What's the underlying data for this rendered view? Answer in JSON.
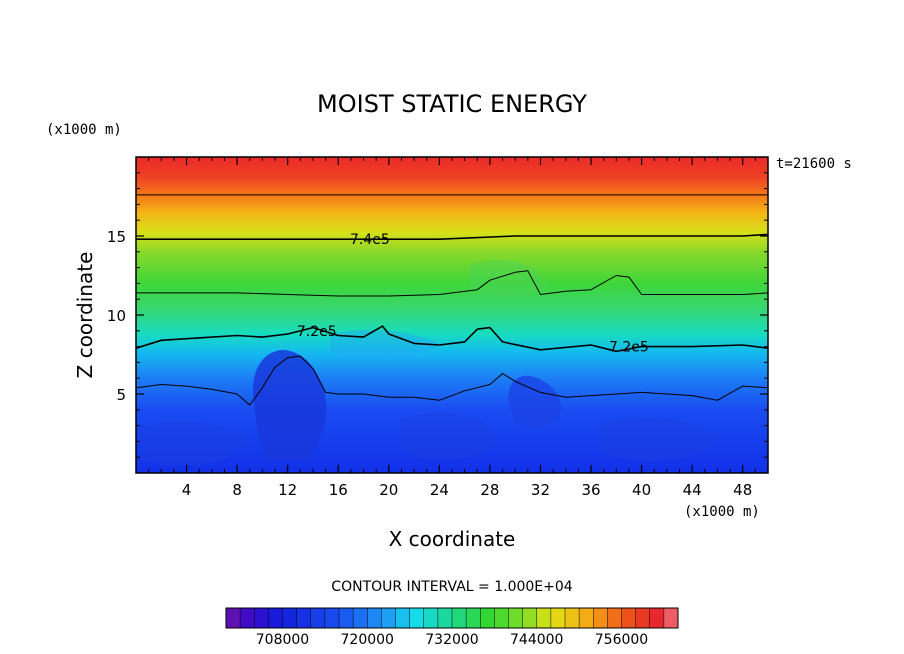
{
  "chart_data": {
    "type": "heatmap",
    "title": "MOIST STATIC ENERGY",
    "time_label": "t=21600 s",
    "xlabel": "X coordinate",
    "ylabel": "Z coordinate",
    "x_unit": "(x1000 m)",
    "y_unit": "(x1000 m)",
    "xlim": [
      0,
      50
    ],
    "ylim": [
      0,
      20
    ],
    "x_ticks": [
      4,
      8,
      12,
      16,
      20,
      24,
      28,
      32,
      36,
      40,
      44,
      48
    ],
    "x_tick_labels": [
      "4",
      "8",
      "12",
      "16",
      "20",
      "24",
      "28",
      "32",
      "36",
      "40",
      "44",
      "48"
    ],
    "y_ticks": [
      5,
      10,
      15
    ],
    "y_tick_labels": [
      "5",
      "10",
      "15"
    ],
    "contour_interval_text": "CONTOUR INTERVAL = 1.000E+04",
    "contour_labels": [
      {
        "text": "7.4e5",
        "x": 18.5,
        "y": 14.8
      },
      {
        "text": "7.2e5",
        "x": 14.3,
        "y": 9.0
      },
      {
        "text": "7.2e5",
        "x": 39.0,
        "y": 8.0
      }
    ],
    "contours": [
      {
        "level": 750000,
        "points": [
          [
            0,
            17.6
          ],
          [
            10,
            17.6
          ],
          [
            25,
            17.6
          ],
          [
            35,
            17.6
          ],
          [
            50,
            17.6
          ]
        ]
      },
      {
        "level": 740000,
        "points": [
          [
            0,
            14.8
          ],
          [
            4,
            14.8
          ],
          [
            8,
            14.8
          ],
          [
            16,
            14.8
          ],
          [
            24,
            14.8
          ],
          [
            30,
            15.0
          ],
          [
            36,
            15.0
          ],
          [
            42,
            15.0
          ],
          [
            48,
            15.0
          ],
          [
            50,
            15.1
          ]
        ]
      },
      {
        "level": 730000,
        "points": [
          [
            0,
            11.4
          ],
          [
            4,
            11.4
          ],
          [
            8,
            11.4
          ],
          [
            12,
            11.3
          ],
          [
            16,
            11.2
          ],
          [
            20,
            11.2
          ],
          [
            24,
            11.3
          ],
          [
            27,
            11.6
          ],
          [
            28,
            12.2
          ],
          [
            30,
            12.7
          ],
          [
            31,
            12.8
          ],
          [
            32,
            11.3
          ],
          [
            34,
            11.5
          ],
          [
            36,
            11.6
          ],
          [
            38,
            12.5
          ],
          [
            39,
            12.4
          ],
          [
            40,
            11.3
          ],
          [
            44,
            11.3
          ],
          [
            48,
            11.3
          ],
          [
            50,
            11.4
          ]
        ]
      },
      {
        "level": 720000,
        "points": [
          [
            0,
            7.9
          ],
          [
            2,
            8.4
          ],
          [
            4,
            8.5
          ],
          [
            8,
            8.7
          ],
          [
            10,
            8.6
          ],
          [
            12,
            8.8
          ],
          [
            14,
            9.2
          ],
          [
            16,
            8.7
          ],
          [
            18,
            8.6
          ],
          [
            19.5,
            9.3
          ],
          [
            20,
            8.8
          ],
          [
            22,
            8.2
          ],
          [
            24,
            8.1
          ],
          [
            26,
            8.3
          ],
          [
            27,
            9.1
          ],
          [
            28,
            9.2
          ],
          [
            29,
            8.3
          ],
          [
            32,
            7.8
          ],
          [
            36,
            8.1
          ],
          [
            38,
            7.7
          ],
          [
            40,
            8.0
          ],
          [
            44,
            8.0
          ],
          [
            48,
            8.1
          ],
          [
            50,
            7.9
          ]
        ]
      },
      {
        "level": 710000,
        "points": [
          [
            0,
            5.4
          ],
          [
            2,
            5.6
          ],
          [
            4,
            5.5
          ],
          [
            6,
            5.3
          ],
          [
            8,
            5.0
          ],
          [
            9,
            4.3
          ],
          [
            10,
            5.4
          ],
          [
            11,
            6.7
          ],
          [
            12,
            7.3
          ],
          [
            13,
            7.4
          ],
          [
            14,
            6.6
          ],
          [
            15,
            5.1
          ],
          [
            16,
            5.0
          ],
          [
            18,
            5.0
          ],
          [
            20,
            4.8
          ],
          [
            22,
            4.8
          ],
          [
            24,
            4.6
          ],
          [
            26,
            5.2
          ],
          [
            28,
            5.6
          ],
          [
            29,
            6.3
          ],
          [
            30,
            5.8
          ],
          [
            32,
            5.1
          ],
          [
            34,
            4.8
          ],
          [
            36,
            4.9
          ],
          [
            40,
            5.1
          ],
          [
            42,
            5.0
          ],
          [
            44,
            4.9
          ],
          [
            46,
            4.6
          ],
          [
            48,
            5.5
          ],
          [
            50,
            5.4
          ]
        ]
      }
    ],
    "colorbar": {
      "vmin": 700000,
      "vmax": 764000,
      "interval": 2000,
      "labels": [
        "708000",
        "720000",
        "732000",
        "744000",
        "756000"
      ],
      "label_values": [
        708000,
        720000,
        732000,
        744000,
        756000
      ]
    }
  }
}
